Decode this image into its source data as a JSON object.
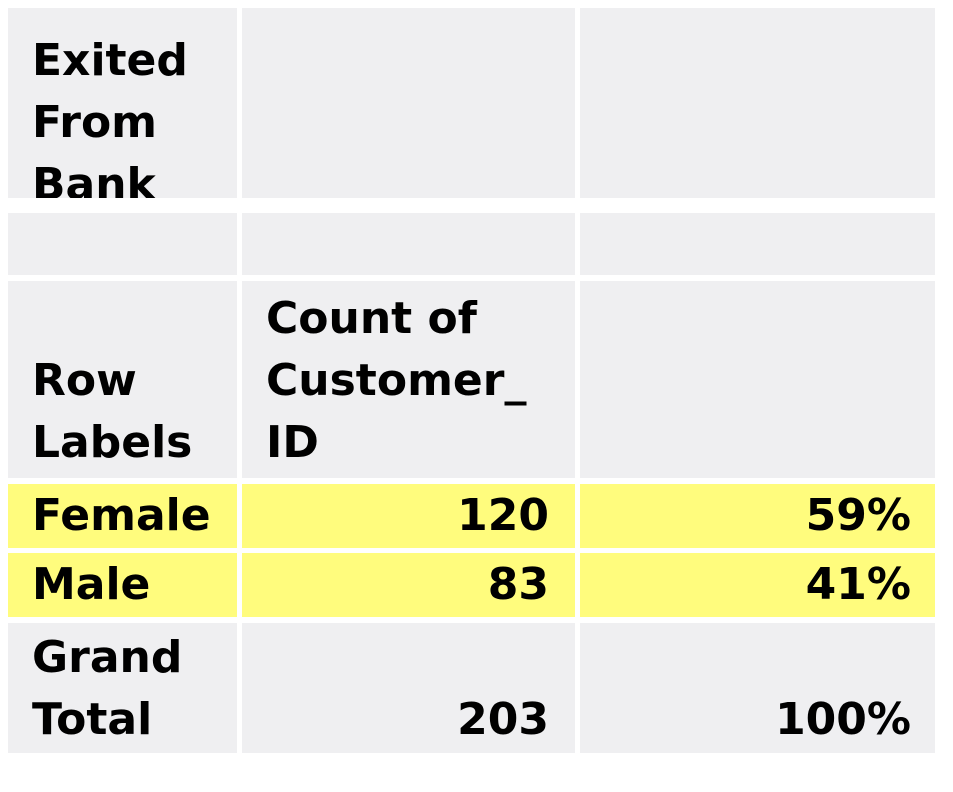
{
  "filter": {
    "label": "Exited\nFrom\nBank",
    "value": "",
    "extra": ""
  },
  "spacer": [
    "",
    "",
    ""
  ],
  "header": {
    "row_labels": "Row\nLabels",
    "count": "Count of\nCustomer_\nID",
    "percent": ""
  },
  "rows": [
    {
      "label": "Female",
      "count": "120",
      "percent": "59%",
      "highlight_color": "#fffc7d"
    },
    {
      "label": "Male",
      "count": "83",
      "percent": "41%",
      "highlight_color": "#fffc7d"
    }
  ],
  "grand_total": {
    "label": "Grand\nTotal",
    "count": "203",
    "percent": "100%"
  },
  "colors": {
    "cell_background": "#efeff1",
    "highlight": "#fffc7d",
    "grid": "#ffffff",
    "text": "#000000"
  }
}
